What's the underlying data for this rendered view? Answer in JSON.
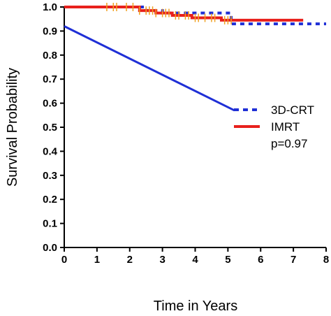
{
  "chart_data": {
    "type": "line",
    "xlabel": "Time in Years",
    "ylabel": "Survival Probability",
    "xlim": [
      0,
      8
    ],
    "ylim": [
      0,
      1.0
    ],
    "x_ticks": [
      "0",
      "1",
      "2",
      "3",
      "4",
      "5",
      "6",
      "7",
      "8"
    ],
    "y_ticks": [
      "0.0",
      "0.1",
      "0.2",
      "0.3",
      "0.4",
      "0.5",
      "0.6",
      "0.7",
      "0.8",
      "0.9",
      "1.0"
    ],
    "grid": false,
    "legend_position": "right",
    "series": [
      {
        "name": "3D-CRT",
        "color": "#1f2fd6",
        "style": "dotted",
        "step_points": [
          [
            0,
            1.0
          ],
          [
            2.2,
            1.0
          ],
          [
            2.5,
            0.985
          ],
          [
            3.0,
            0.975
          ],
          [
            5.0,
            0.975
          ],
          [
            5.1,
            0.93
          ],
          [
            8.0,
            0.93
          ]
        ]
      },
      {
        "name": "IMRT",
        "color": "#e8201c",
        "style": "solid",
        "step_points": [
          [
            0,
            1.0
          ],
          [
            2.0,
            1.0
          ],
          [
            2.3,
            0.985
          ],
          [
            2.8,
            0.975
          ],
          [
            3.3,
            0.965
          ],
          [
            3.9,
            0.955
          ],
          [
            4.7,
            0.955
          ],
          [
            4.8,
            0.945
          ],
          [
            7.3,
            0.945
          ]
        ],
        "censor_marks_x": [
          1.3,
          1.5,
          1.6,
          1.9,
          2.1,
          2.3,
          2.5,
          2.6,
          2.7,
          2.8,
          3.0,
          3.1,
          3.2,
          3.4,
          3.5,
          3.7,
          3.8,
          4.0,
          4.1,
          4.3,
          4.5,
          4.6,
          4.9,
          5.0,
          5.1
        ]
      }
    ],
    "extra_line": {
      "color": "#1f2fd6",
      "points": [
        [
          0,
          0.92
        ],
        [
          5.2,
          0.57
        ]
      ]
    },
    "annotation": "p=0.97",
    "censor_color": "#f0a020"
  }
}
